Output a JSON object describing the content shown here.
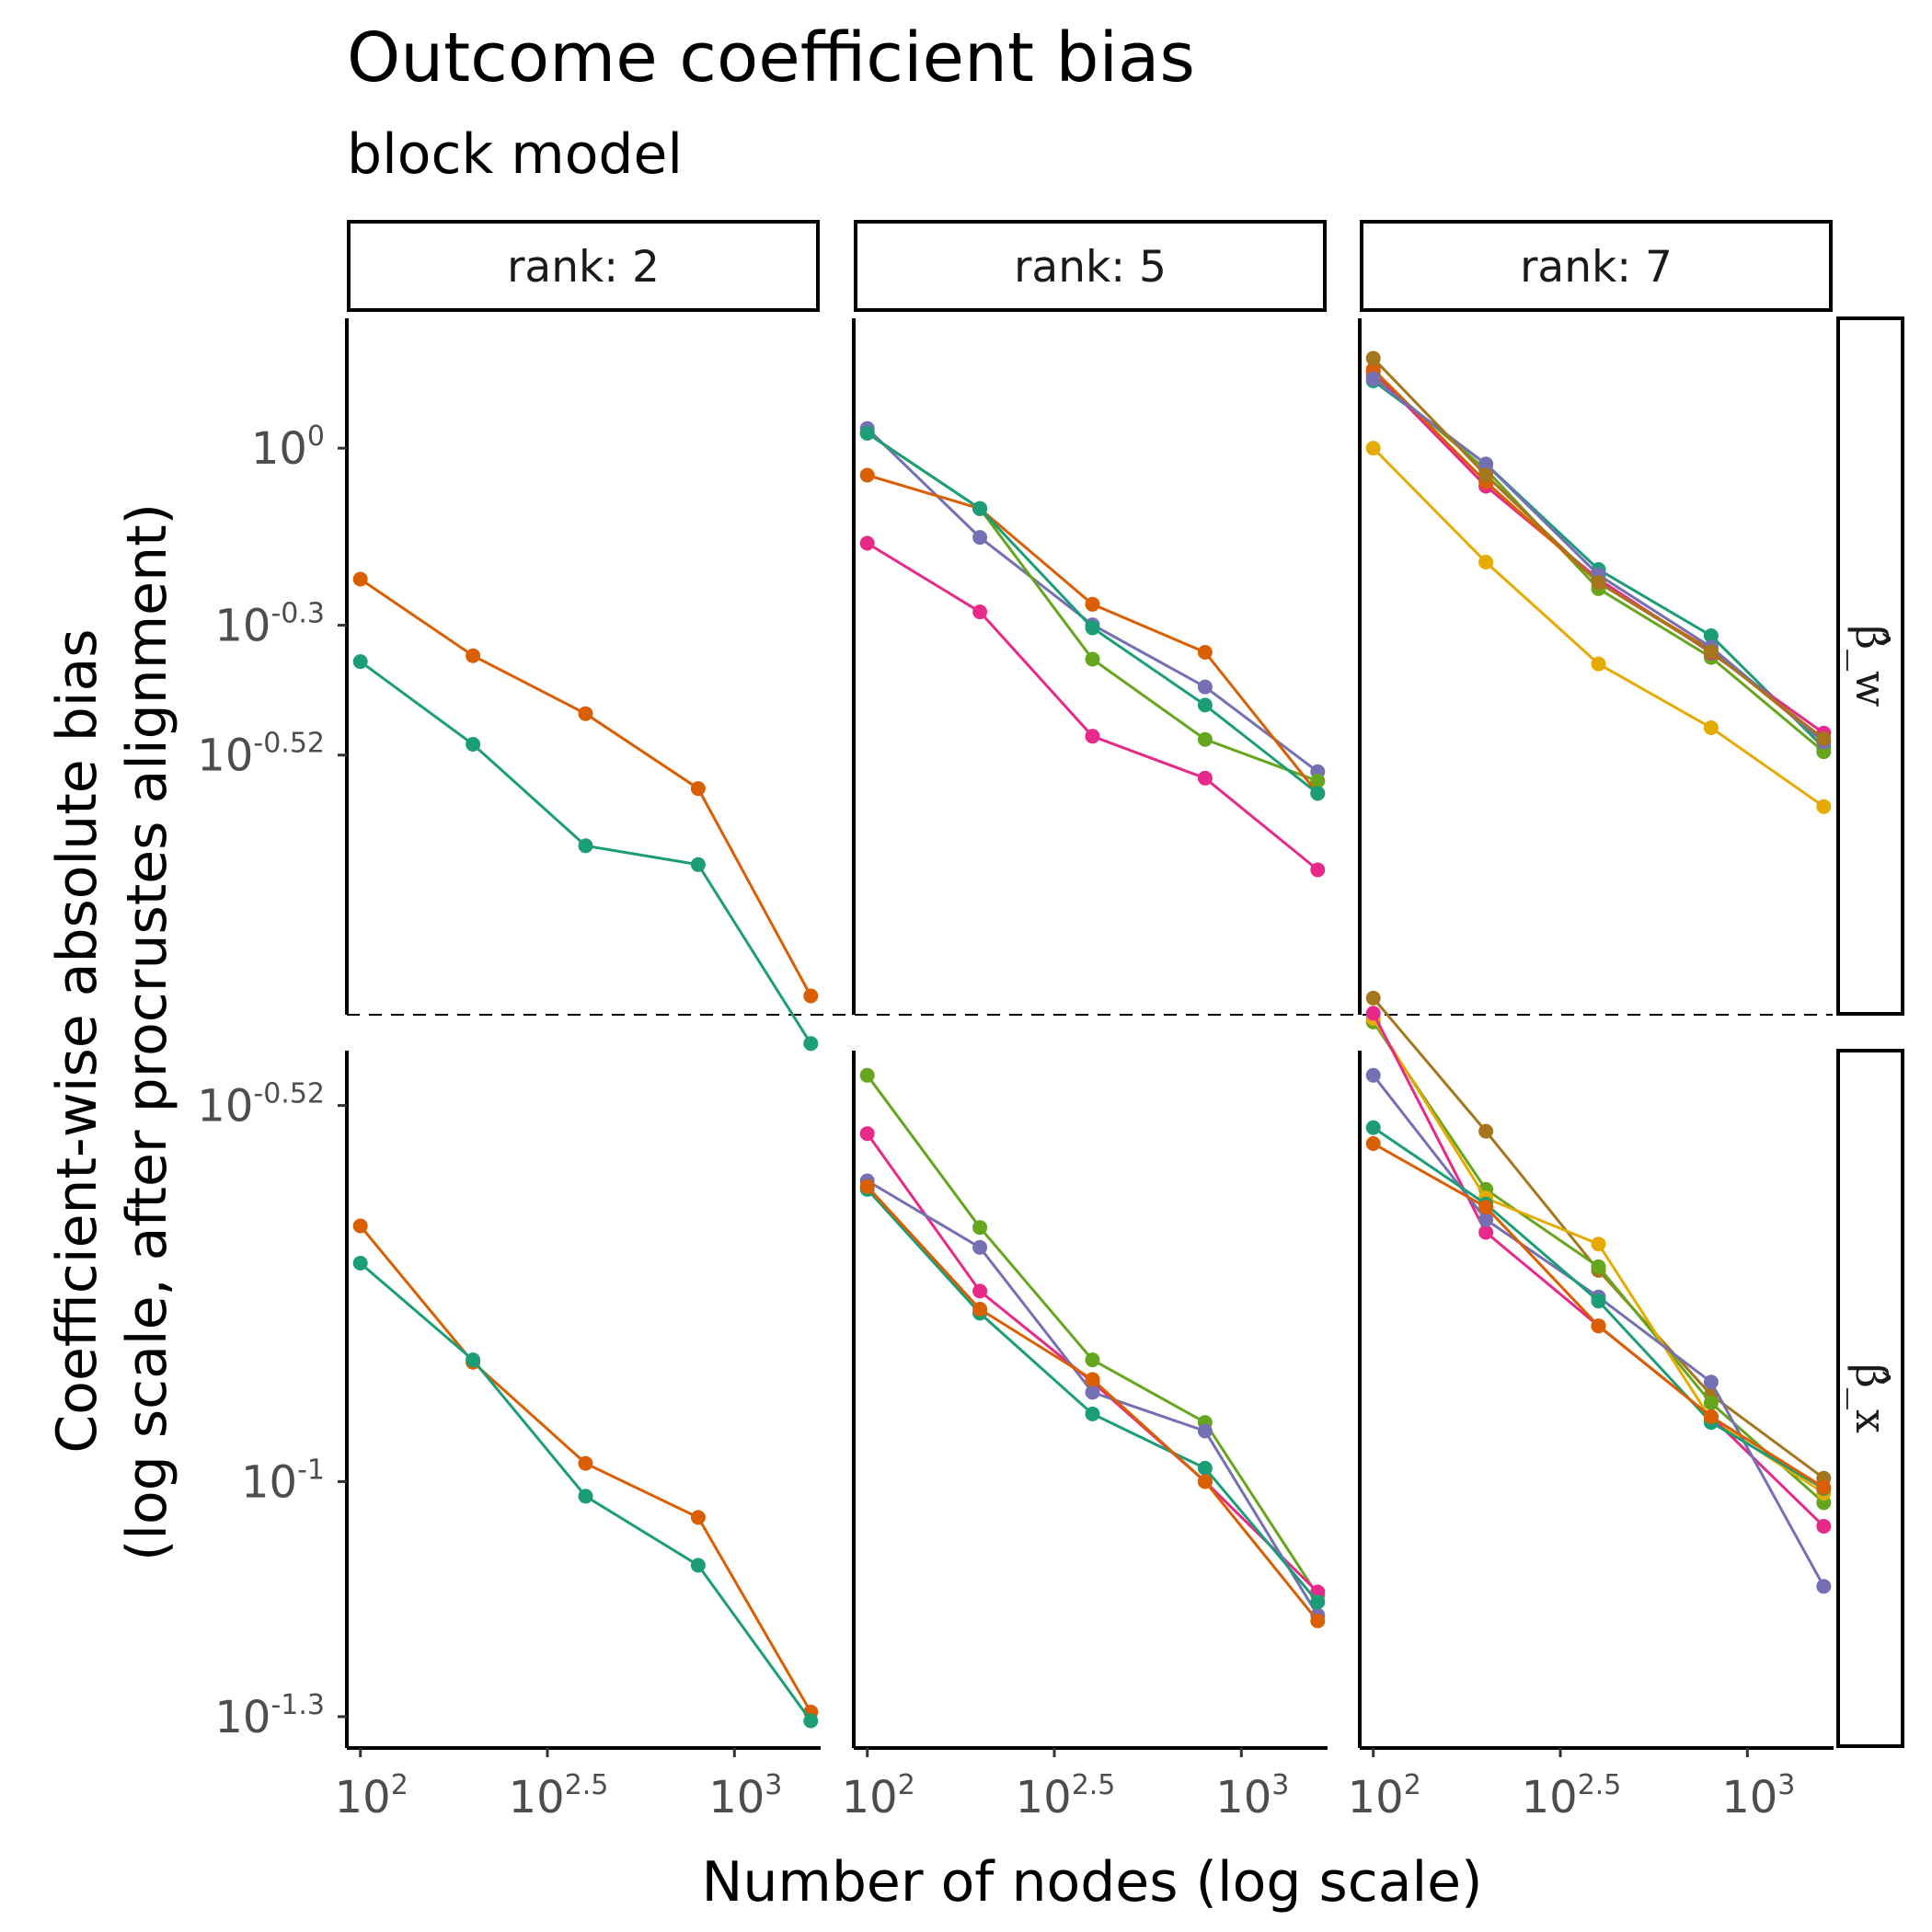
{
  "chart_data": {
    "type": "line",
    "title": "Outcome coefficient bias",
    "subtitle": "block model",
    "xlabel": "Number of nodes (log scale)",
    "ylabel": [
      "Coefficient-wise absolute bias",
      "(log scale, after procrustes alignment)"
    ],
    "x_scale": "log10",
    "y_scale": "log10",
    "x": [
      100,
      200,
      400,
      800,
      1600
    ],
    "x_ticks": [
      {
        "base": "10",
        "exp": "2",
        "value": 100
      },
      {
        "base": "10",
        "exp": "2.5",
        "value": 316.23
      },
      {
        "base": "10",
        "exp": "3",
        "value": 1000
      }
    ],
    "xlim": [
      92,
      1700
    ],
    "columns": [
      {
        "label": "rank: 2"
      },
      {
        "label": "rank: 5"
      },
      {
        "label": "rank: 7"
      }
    ],
    "rows": [
      {
        "label": "β̂_w",
        "ylim_log10": [
          -0.96,
          0.22
        ],
        "y_ticks": [
          {
            "base": "10",
            "exp": "0",
            "log10": 0
          },
          {
            "base": "10",
            "exp": "-0.3",
            "log10": -0.3
          },
          {
            "base": "10",
            "exp": "-0.52",
            "log10": -0.52
          }
        ],
        "panels": [
          {
            "series": [
              {
                "color": "#D95F02",
                "values": [
                  0.6,
                  0.445,
                  0.355,
                  0.265,
                  0.118
                ]
              },
              {
                "color": "#1B9E77",
                "values": [
                  0.435,
                  0.315,
                  0.212,
                  0.197,
                  0.098
                ]
              }
            ]
          },
          {
            "series": [
              {
                "color": "#7570B3",
                "values": [
                  1.08,
                  0.706,
                  0.502,
                  0.394,
                  0.283
                ]
              },
              {
                "color": "#66A61E",
                "values": [
                  1.06,
                  0.79,
                  0.439,
                  0.321,
                  0.273
                ]
              },
              {
                "color": "#D95F02",
                "values": [
                  0.9,
                  0.79,
                  0.544,
                  0.451,
                  0.26
                ]
              },
              {
                "color": "#1B9E77",
                "values": [
                  1.06,
                  0.79,
                  0.496,
                  0.367,
                  0.26
                ]
              },
              {
                "color": "#E7298A",
                "values": [
                  0.69,
                  0.528,
                  0.325,
                  0.276,
                  0.193
                ]
              }
            ]
          },
          {
            "series": [
              {
                "color": "#E6AB02",
                "values": [
                  1.0,
                  0.641,
                  0.431,
                  0.336,
                  0.247
                ]
              },
              {
                "color": "#1B9E77",
                "values": [
                  1.3,
                  0.94,
                  0.623,
                  0.481,
                  0.311
                ]
              },
              {
                "color": "#66A61E",
                "values": [
                  1.33,
                  0.92,
                  0.578,
                  0.442,
                  0.306
                ]
              },
              {
                "color": "#E7298A",
                "values": [
                  1.35,
                  0.862,
                  0.6,
                  0.45,
                  0.329
                ]
              },
              {
                "color": "#D95F02",
                "values": [
                  1.36,
                  0.877,
                  0.592,
                  0.455,
                  0.318
                ]
              },
              {
                "color": "#7570B3",
                "values": [
                  1.31,
                  0.94,
                  0.61,
                  0.46,
                  0.318
                ]
              },
              {
                "color": "#A6761D",
                "values": [
                  1.42,
                  0.9,
                  0.592,
                  0.452,
                  0.322
                ]
              }
            ]
          }
        ]
      },
      {
        "label": "β̂_x",
        "ylim_log10": [
          -1.34,
          -0.45
        ],
        "y_ticks": [
          {
            "base": "10",
            "exp": "-0.52",
            "log10": -0.52
          },
          {
            "base": "10",
            "exp": "-1",
            "log10": -1
          },
          {
            "base": "10",
            "exp": "-1.3",
            "log10": -1.3
          }
        ],
        "panels": [
          {
            "series": [
              {
                "color": "#D95F02",
                "values": [
                  0.212,
                  0.142,
                  0.1055,
                  0.09,
                  0.0508
                ]
              },
              {
                "color": "#1B9E77",
                "values": [
                  0.19,
                  0.143,
                  0.0958,
                  0.0782,
                  0.0495
                ]
              }
            ]
          },
          {
            "series": [
              {
                "color": "#66A61E",
                "values": [
                  0.33,
                  0.211,
                  0.143,
                  0.119,
                  0.0716
                ]
              },
              {
                "color": "#E7298A",
                "values": [
                  0.278,
                  0.175,
                  0.134,
                  0.1,
                  0.0723
                ]
              },
              {
                "color": "#7570B3",
                "values": [
                  0.242,
                  0.199,
                  0.13,
                  0.116,
                  0.0675
                ]
              },
              {
                "color": "#1B9E77",
                "values": [
                  0.236,
                  0.164,
                  0.122,
                  0.104,
                  0.0702
                ]
              },
              {
                "color": "#D95F02",
                "values": [
                  0.238,
                  0.166,
                  0.135,
                  0.1,
                  0.0664
                ]
              }
            ]
          },
          {
            "series": [
              {
                "color": "#A6761D",
                "values": [
                  0.414,
                  0.28,
                  0.186,
                  0.129,
                  0.101
                ]
              },
              {
                "color": "#66A61E",
                "values": [
                  0.386,
                  0.236,
                  0.188,
                  0.126,
                  0.094
                ]
              },
              {
                "color": "#E6AB02",
                "values": [
                  0.39,
                  0.23,
                  0.201,
                  0.12,
                  0.0967
                ]
              },
              {
                "color": "#E7298A",
                "values": [
                  0.396,
                  0.208,
                  0.158,
                  0.121,
                  0.0877
                ]
              },
              {
                "color": "#7570B3",
                "values": [
                  0.33,
                  0.216,
                  0.172,
                  0.134,
                  0.0735
                ]
              },
              {
                "color": "#1B9E77",
                "values": [
                  0.283,
                  0.226,
                  0.17,
                  0.119,
                  0.098
                ]
              },
              {
                "color": "#D95F02",
                "values": [
                  0.27,
                  0.224,
                  0.158,
                  0.121,
                  0.0983
                ]
              }
            ]
          }
        ]
      }
    ]
  }
}
